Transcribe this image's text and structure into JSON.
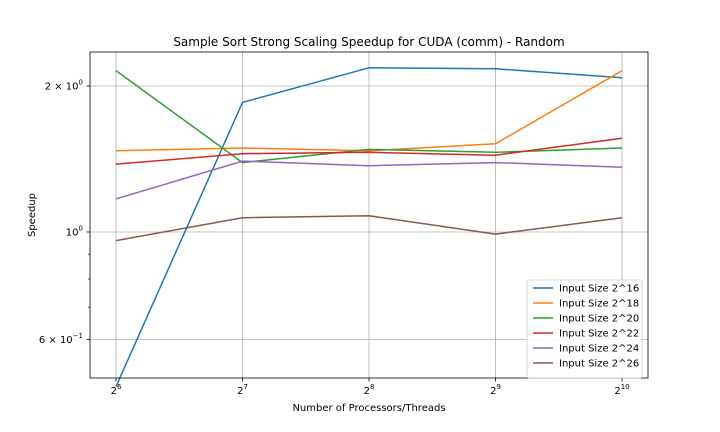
{
  "chart_data": {
    "type": "line",
    "title": "Sample Sort Strong Scaling Speedup for CUDA (comm) - Random",
    "xlabel": "Number of Processors/Threads",
    "ylabel": "Speedup",
    "x_scale": "log2",
    "y_scale": "log10",
    "x": [
      64,
      128,
      256,
      512,
      1024
    ],
    "x_tick_labels": [
      {
        "base": "2",
        "exp": "6"
      },
      {
        "base": "2",
        "exp": "7"
      },
      {
        "base": "2",
        "exp": "8"
      },
      {
        "base": "2",
        "exp": "9"
      },
      {
        "base": "2",
        "exp": "10"
      }
    ],
    "y_major_ticks": [
      {
        "value": 1.0,
        "mantissa": "",
        "exp": "0",
        "label_prefix": "10"
      },
      {
        "value": 2.0,
        "mantissa": "2 × ",
        "exp": "0",
        "label_prefix": "10"
      },
      {
        "value": 0.6,
        "mantissa": "6 × ",
        "exp": "−1",
        "label_prefix": "10"
      }
    ],
    "ylim": [
      0.5,
      2.35
    ],
    "grid": true,
    "legend_position": "lower right",
    "series": [
      {
        "name": "Input Size 2^16",
        "color": "#1f77b4",
        "values": [
          0.48,
          1.85,
          2.18,
          2.17,
          2.08
        ]
      },
      {
        "name": "Input Size 2^18",
        "color": "#ff7f0e",
        "values": [
          1.47,
          1.49,
          1.47,
          1.52,
          2.15
        ]
      },
      {
        "name": "Input Size 2^20",
        "color": "#2ca02c",
        "values": [
          2.15,
          1.39,
          1.48,
          1.46,
          1.49
        ]
      },
      {
        "name": "Input Size 2^22",
        "color": "#d62728",
        "values": [
          1.38,
          1.45,
          1.46,
          1.44,
          1.56
        ]
      },
      {
        "name": "Input Size 2^24",
        "color": "#9467bd",
        "values": [
          1.17,
          1.4,
          1.37,
          1.39,
          1.36
        ]
      },
      {
        "name": "Input Size 2^26",
        "color": "#8c564b",
        "values": [
          0.96,
          1.07,
          1.08,
          0.99,
          1.07
        ]
      }
    ]
  }
}
